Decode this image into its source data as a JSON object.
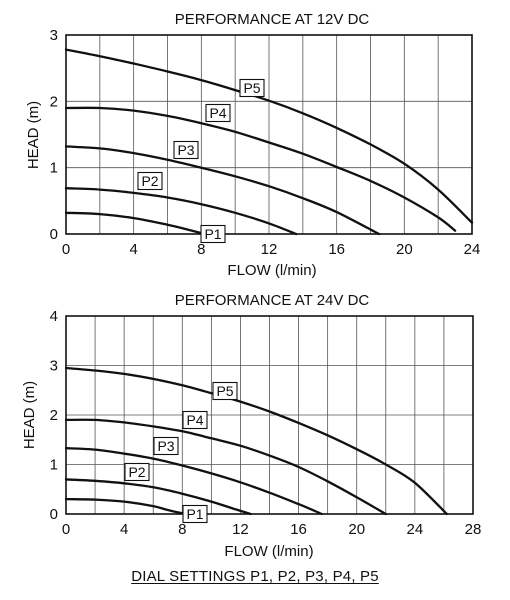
{
  "caption": "DIAL SETTINGS P1, P2, P3, P4, P5",
  "chart_data": [
    {
      "type": "line",
      "title": "PERFORMANCE AT 12V DC",
      "xlabel": "FLOW (l/min)",
      "ylabel": "HEAD (m)",
      "xlim": [
        0,
        24
      ],
      "ylim": [
        0,
        3
      ],
      "xticks": [
        "0",
        "4",
        "8",
        "12",
        "16",
        "20",
        "24"
      ],
      "yticks": [
        "0",
        "1",
        "2",
        "3"
      ],
      "grid": true,
      "series": [
        {
          "name": "P1",
          "x": [
            0,
            2,
            4,
            6,
            7,
            8.2
          ],
          "y": [
            0.32,
            0.3,
            0.24,
            0.14,
            0.08,
            0
          ]
        },
        {
          "name": "P2",
          "x": [
            0,
            2,
            4,
            6,
            8,
            10,
            12,
            13.6
          ],
          "y": [
            0.69,
            0.67,
            0.62,
            0.55,
            0.45,
            0.32,
            0.16,
            0
          ]
        },
        {
          "name": "P3",
          "x": [
            0,
            2,
            4,
            6,
            8,
            10,
            12,
            14,
            16,
            18.5
          ],
          "y": [
            1.32,
            1.29,
            1.22,
            1.12,
            1.0,
            0.87,
            0.72,
            0.54,
            0.33,
            0
          ]
        },
        {
          "name": "P4",
          "x": [
            0,
            2,
            4,
            6,
            8,
            10,
            12,
            14,
            16,
            18,
            20,
            22,
            23
          ],
          "y": [
            1.9,
            1.9,
            1.86,
            1.78,
            1.67,
            1.54,
            1.38,
            1.21,
            1.01,
            0.8,
            0.55,
            0.25,
            0.05
          ]
        },
        {
          "name": "P5",
          "x": [
            0,
            2,
            4,
            6,
            8,
            10,
            12,
            14,
            16,
            18,
            20,
            22,
            24
          ],
          "y": [
            2.78,
            2.68,
            2.57,
            2.45,
            2.32,
            2.17,
            2.01,
            1.82,
            1.6,
            1.35,
            1.06,
            0.67,
            0.17
          ]
        }
      ]
    },
    {
      "type": "line",
      "title": "PERFORMANCE AT 24V DC",
      "xlabel": "FLOW (l/min)",
      "ylabel": "HEAD (m)",
      "xlim": [
        0,
        28
      ],
      "ylim": [
        0,
        4
      ],
      "xticks": [
        "0",
        "4",
        "8",
        "12",
        "16",
        "20",
        "24",
        "28"
      ],
      "yticks": [
        "0",
        "1",
        "2",
        "3",
        "4"
      ],
      "grid": true,
      "series": [
        {
          "name": "P1",
          "x": [
            0,
            2,
            4,
            6,
            7,
            8.2
          ],
          "y": [
            0.3,
            0.29,
            0.25,
            0.16,
            0.08,
            0
          ]
        },
        {
          "name": "P2",
          "x": [
            0,
            2,
            4,
            6,
            8,
            10,
            11.5,
            12.7
          ],
          "y": [
            0.7,
            0.67,
            0.62,
            0.54,
            0.41,
            0.25,
            0.11,
            0
          ]
        },
        {
          "name": "P3",
          "x": [
            0,
            2,
            4,
            6,
            8,
            10,
            12,
            14,
            16,
            17.6
          ],
          "y": [
            1.33,
            1.3,
            1.22,
            1.12,
            0.98,
            0.82,
            0.64,
            0.43,
            0.2,
            0
          ]
        },
        {
          "name": "P4",
          "x": [
            0,
            2,
            4,
            6,
            8,
            10,
            12,
            14,
            16,
            18,
            20,
            22
          ],
          "y": [
            1.9,
            1.9,
            1.85,
            1.77,
            1.67,
            1.53,
            1.38,
            1.18,
            0.95,
            0.66,
            0.34,
            0
          ]
        },
        {
          "name": "P5",
          "x": [
            0,
            2,
            4,
            6,
            8,
            10,
            12,
            14,
            16,
            18,
            20,
            22,
            24,
            26.2
          ],
          "y": [
            2.95,
            2.9,
            2.83,
            2.73,
            2.6,
            2.44,
            2.27,
            2.07,
            1.84,
            1.59,
            1.31,
            1.0,
            0.63,
            0
          ]
        }
      ]
    }
  ]
}
